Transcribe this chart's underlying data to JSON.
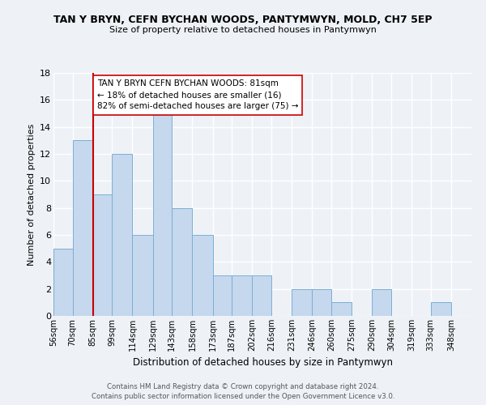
{
  "title1": "TAN Y BRYN, CEFN BYCHAN WOODS, PANTYMWYN, MOLD, CH7 5EP",
  "title2": "Size of property relative to detached houses in Pantymwyn",
  "xlabel": "Distribution of detached houses by size in Pantymwyn",
  "ylabel": "Number of detached properties",
  "footer1": "Contains HM Land Registry data © Crown copyright and database right 2024.",
  "footer2": "Contains public sector information licensed under the Open Government Licence v3.0.",
  "categories": [
    "56sqm",
    "70sqm",
    "85sqm",
    "99sqm",
    "114sqm",
    "129sqm",
    "143sqm",
    "158sqm",
    "173sqm",
    "187sqm",
    "202sqm",
    "216sqm",
    "231sqm",
    "246sqm",
    "260sqm",
    "275sqm",
    "290sqm",
    "304sqm",
    "319sqm",
    "333sqm",
    "348sqm"
  ],
  "values": [
    5,
    13,
    9,
    12,
    6,
    15,
    8,
    6,
    3,
    3,
    3,
    0,
    2,
    2,
    1,
    0,
    2,
    0,
    0,
    1,
    0
  ],
  "bar_color": "#c5d8ed",
  "bar_edge_color": "#7bafd4",
  "property_line_color": "#cc0000",
  "annotation_text": "TAN Y BRYN CEFN BYCHAN WOODS: 81sqm\n← 18% of detached houses are smaller (16)\n82% of semi-detached houses are larger (75) →",
  "annotation_box_color": "white",
  "annotation_box_edge": "#cc0000",
  "ylim": [
    0,
    18
  ],
  "bin_edges": [
    56,
    70,
    85,
    99,
    114,
    129,
    143,
    158,
    173,
    187,
    202,
    216,
    231,
    246,
    260,
    275,
    290,
    304,
    319,
    333,
    348,
    363
  ],
  "background_color": "#eef2f7",
  "grid_color": "#ffffff",
  "yticks": [
    0,
    2,
    4,
    6,
    8,
    10,
    12,
    14,
    16,
    18
  ]
}
